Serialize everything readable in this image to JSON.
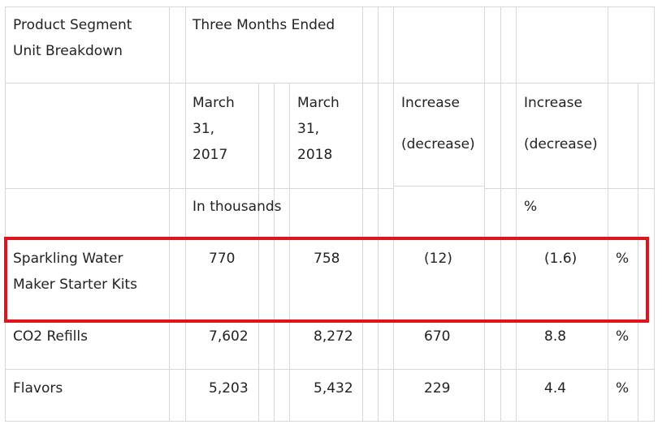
{
  "table": {
    "header": {
      "title_line1": "Product Segment",
      "title_line2": "Unit Breakdown",
      "period": "Three Months Ended",
      "col1_line1": "March",
      "col1_line2": "31,",
      "col1_line3": "2017",
      "col2_line1": "March",
      "col2_line2": "31,",
      "col2_line3": "2018",
      "col3_line1": "Increase",
      "col3_line2": "(decrease)",
      "col4_line1": "Increase",
      "col4_line2": "(decrease)",
      "units_thousands": "In thousands",
      "units_percent": "%"
    },
    "rows": [
      {
        "label_line1": "Sparkling Water",
        "label_line2": "Maker Starter Kits",
        "q1_2017": "770",
        "q1_2018": "758",
        "change": "(12)",
        "change_pct": "(1.6)",
        "pct_sign": "%"
      },
      {
        "label_line1": "CO2 Refills",
        "q1_2017": "7,602",
        "q1_2018": "8,272",
        "change": "670",
        "change_pct": "8.8",
        "pct_sign": "%"
      },
      {
        "label_line1": "Flavors",
        "q1_2017": "5,203",
        "q1_2018": "5,432",
        "change": "229",
        "change_pct": "4.4",
        "pct_sign": "%"
      }
    ]
  },
  "highlight": {
    "color": "#e0141e"
  }
}
